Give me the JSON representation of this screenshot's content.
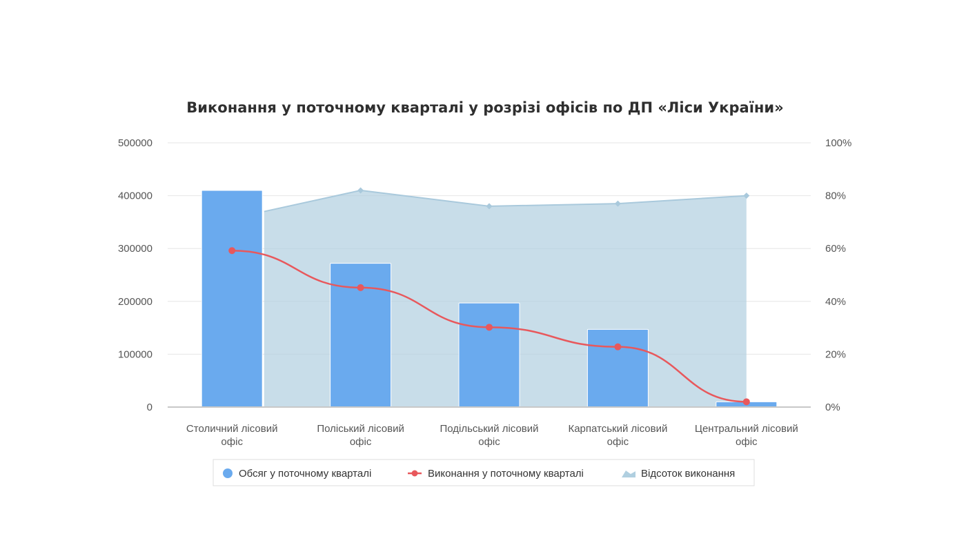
{
  "chart_data": {
    "type": "bar",
    "title": "Виконання у поточному кварталі у розрізі офісів по ДП «Ліси України»",
    "categories": [
      [
        "Столичний лісовий",
        "офіс"
      ],
      [
        "Поліський лісовий",
        "офіс"
      ],
      [
        "Подільський лісовий",
        "офіс"
      ],
      [
        "Карпатський лісовий",
        "офіс"
      ],
      [
        "Центральний лісовий",
        "офіс"
      ]
    ],
    "y_left": {
      "min": 0,
      "max": 500000,
      "ticks": [
        "500000",
        "400000",
        "300000",
        "200000",
        "100000",
        "0"
      ],
      "tick_values": [
        500000,
        400000,
        300000,
        200000,
        100000,
        0
      ]
    },
    "y_right": {
      "min": 0,
      "max": 100,
      "ticks": [
        "100%",
        "80%",
        "60%",
        "40%",
        "20%",
        "0%"
      ],
      "tick_values": [
        100,
        80,
        60,
        40,
        20,
        0
      ]
    },
    "grid": true,
    "legend_position": "bottom-center",
    "series": [
      {
        "name": "Обсяг у поточному кварталі",
        "type": "bar",
        "axis": "left",
        "color": "#6aaaee",
        "values": [
          410000,
          272000,
          197000,
          147000,
          10000
        ]
      },
      {
        "name": "Виконання у поточному кварталі",
        "type": "line",
        "axis": "left",
        "color": "#e8585c",
        "values": [
          296000,
          226000,
          151000,
          114000,
          10000
        ]
      },
      {
        "name": "Відсоток виконання",
        "type": "area",
        "axis": "right",
        "color": "#b0cfe0",
        "values": [
          74,
          82,
          76,
          77,
          80
        ]
      }
    ]
  }
}
